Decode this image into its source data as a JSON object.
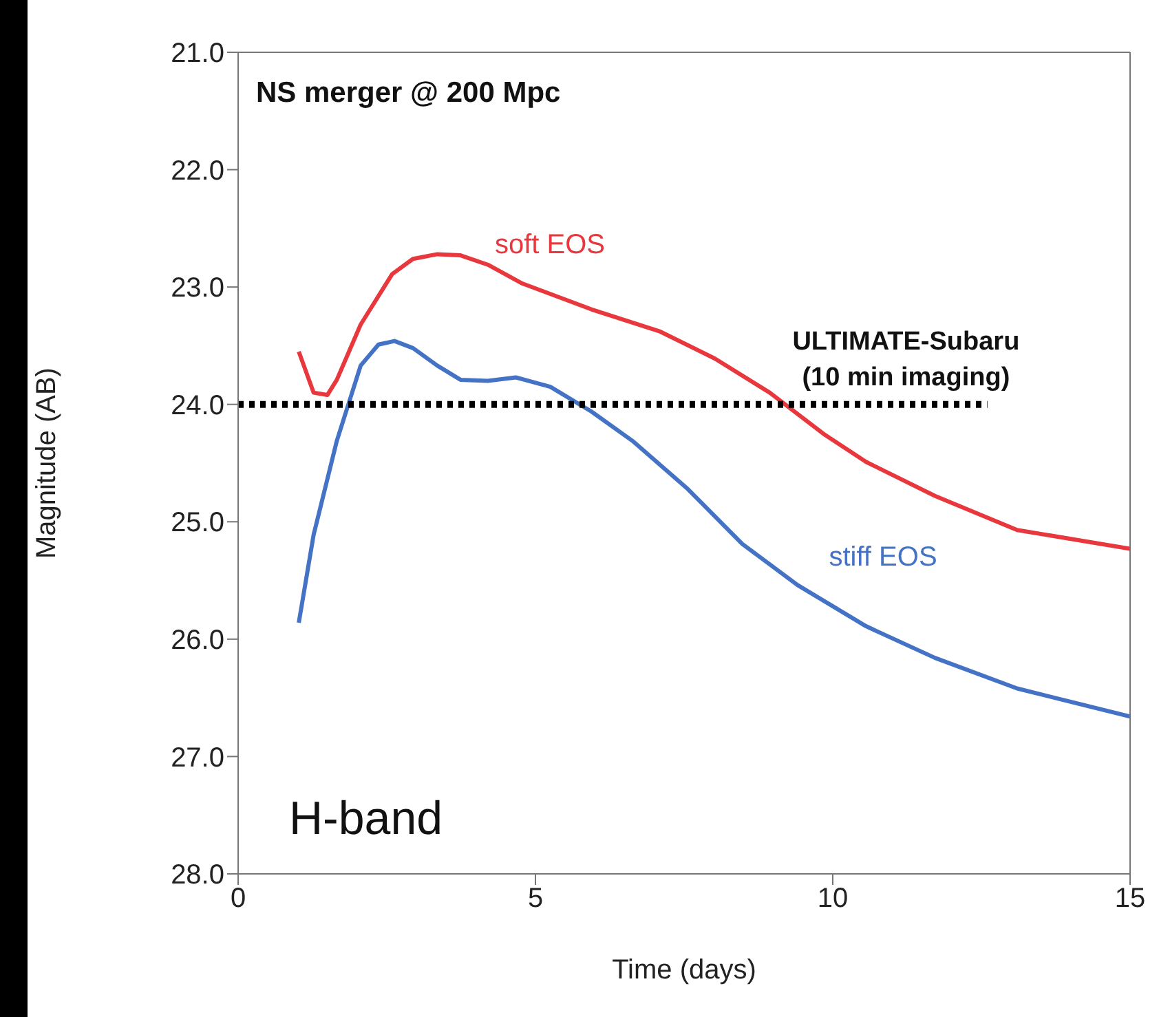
{
  "chart_data": {
    "type": "line",
    "title": "NS merger @ 200 Mpc",
    "xlabel": "Time (days)",
    "ylabel": "Magnitude (AB)",
    "series": [
      {
        "name": "soft EOS",
        "color": "#e8383d",
        "x": [
          1.02,
          1.27,
          1.5,
          1.66,
          2.06,
          2.59,
          2.94,
          3.35,
          3.74,
          4.2,
          4.78,
          5.94,
          7.1,
          8.02,
          8.94,
          9.87,
          10.56,
          11.72,
          13.1,
          15
        ],
        "values": [
          23.55,
          23.9,
          23.92,
          23.79,
          23.32,
          22.89,
          22.76,
          22.72,
          22.73,
          22.81,
          22.97,
          23.19,
          23.38,
          23.61,
          23.9,
          24.26,
          24.49,
          24.78,
          25.07,
          25.23
        ]
      },
      {
        "name": "stiff EOS",
        "color": "#4472c4",
        "x": [
          1.02,
          1.27,
          1.66,
          2.06,
          2.36,
          2.63,
          2.94,
          3.35,
          3.74,
          4.2,
          4.67,
          5.25,
          5.94,
          6.63,
          7.56,
          8.48,
          9.41,
          10.56,
          11.72,
          13.1,
          15
        ],
        "values": [
          25.86,
          25.11,
          24.31,
          23.67,
          23.49,
          23.46,
          23.52,
          23.67,
          23.79,
          23.8,
          23.77,
          23.85,
          24.06,
          24.31,
          24.72,
          25.19,
          25.54,
          25.89,
          26.16,
          26.42,
          26.66
        ]
      },
      {
        "color": "#000000",
        "line_style": "dotted",
        "x": [
          0,
          12.6
        ],
        "values": [
          24,
          24
        ]
      }
    ],
    "xlim": [
      0,
      15
    ],
    "xticks": [
      0,
      5,
      10,
      15
    ],
    "ylim": [
      28,
      21
    ],
    "yticks": [
      {
        "value": 21,
        "label": "21.0"
      },
      {
        "value": 22,
        "label": "22.0"
      },
      {
        "value": 23,
        "label": "23.0"
      },
      {
        "value": 24,
        "label": "24.0"
      },
      {
        "value": 25,
        "label": "25.0"
      },
      {
        "value": 26,
        "label": "26.0"
      },
      {
        "value": 27,
        "label": "27.0"
      },
      {
        "value": 28,
        "label": "28.0"
      }
    ],
    "annotations": [
      {
        "text": "ULTIMATE-Subaru\n(10 min imaging)",
        "x": 11,
        "y": 24
      },
      "H-band"
    ],
    "legend": false,
    "marker": "none",
    "line_style": "solid"
  }
}
